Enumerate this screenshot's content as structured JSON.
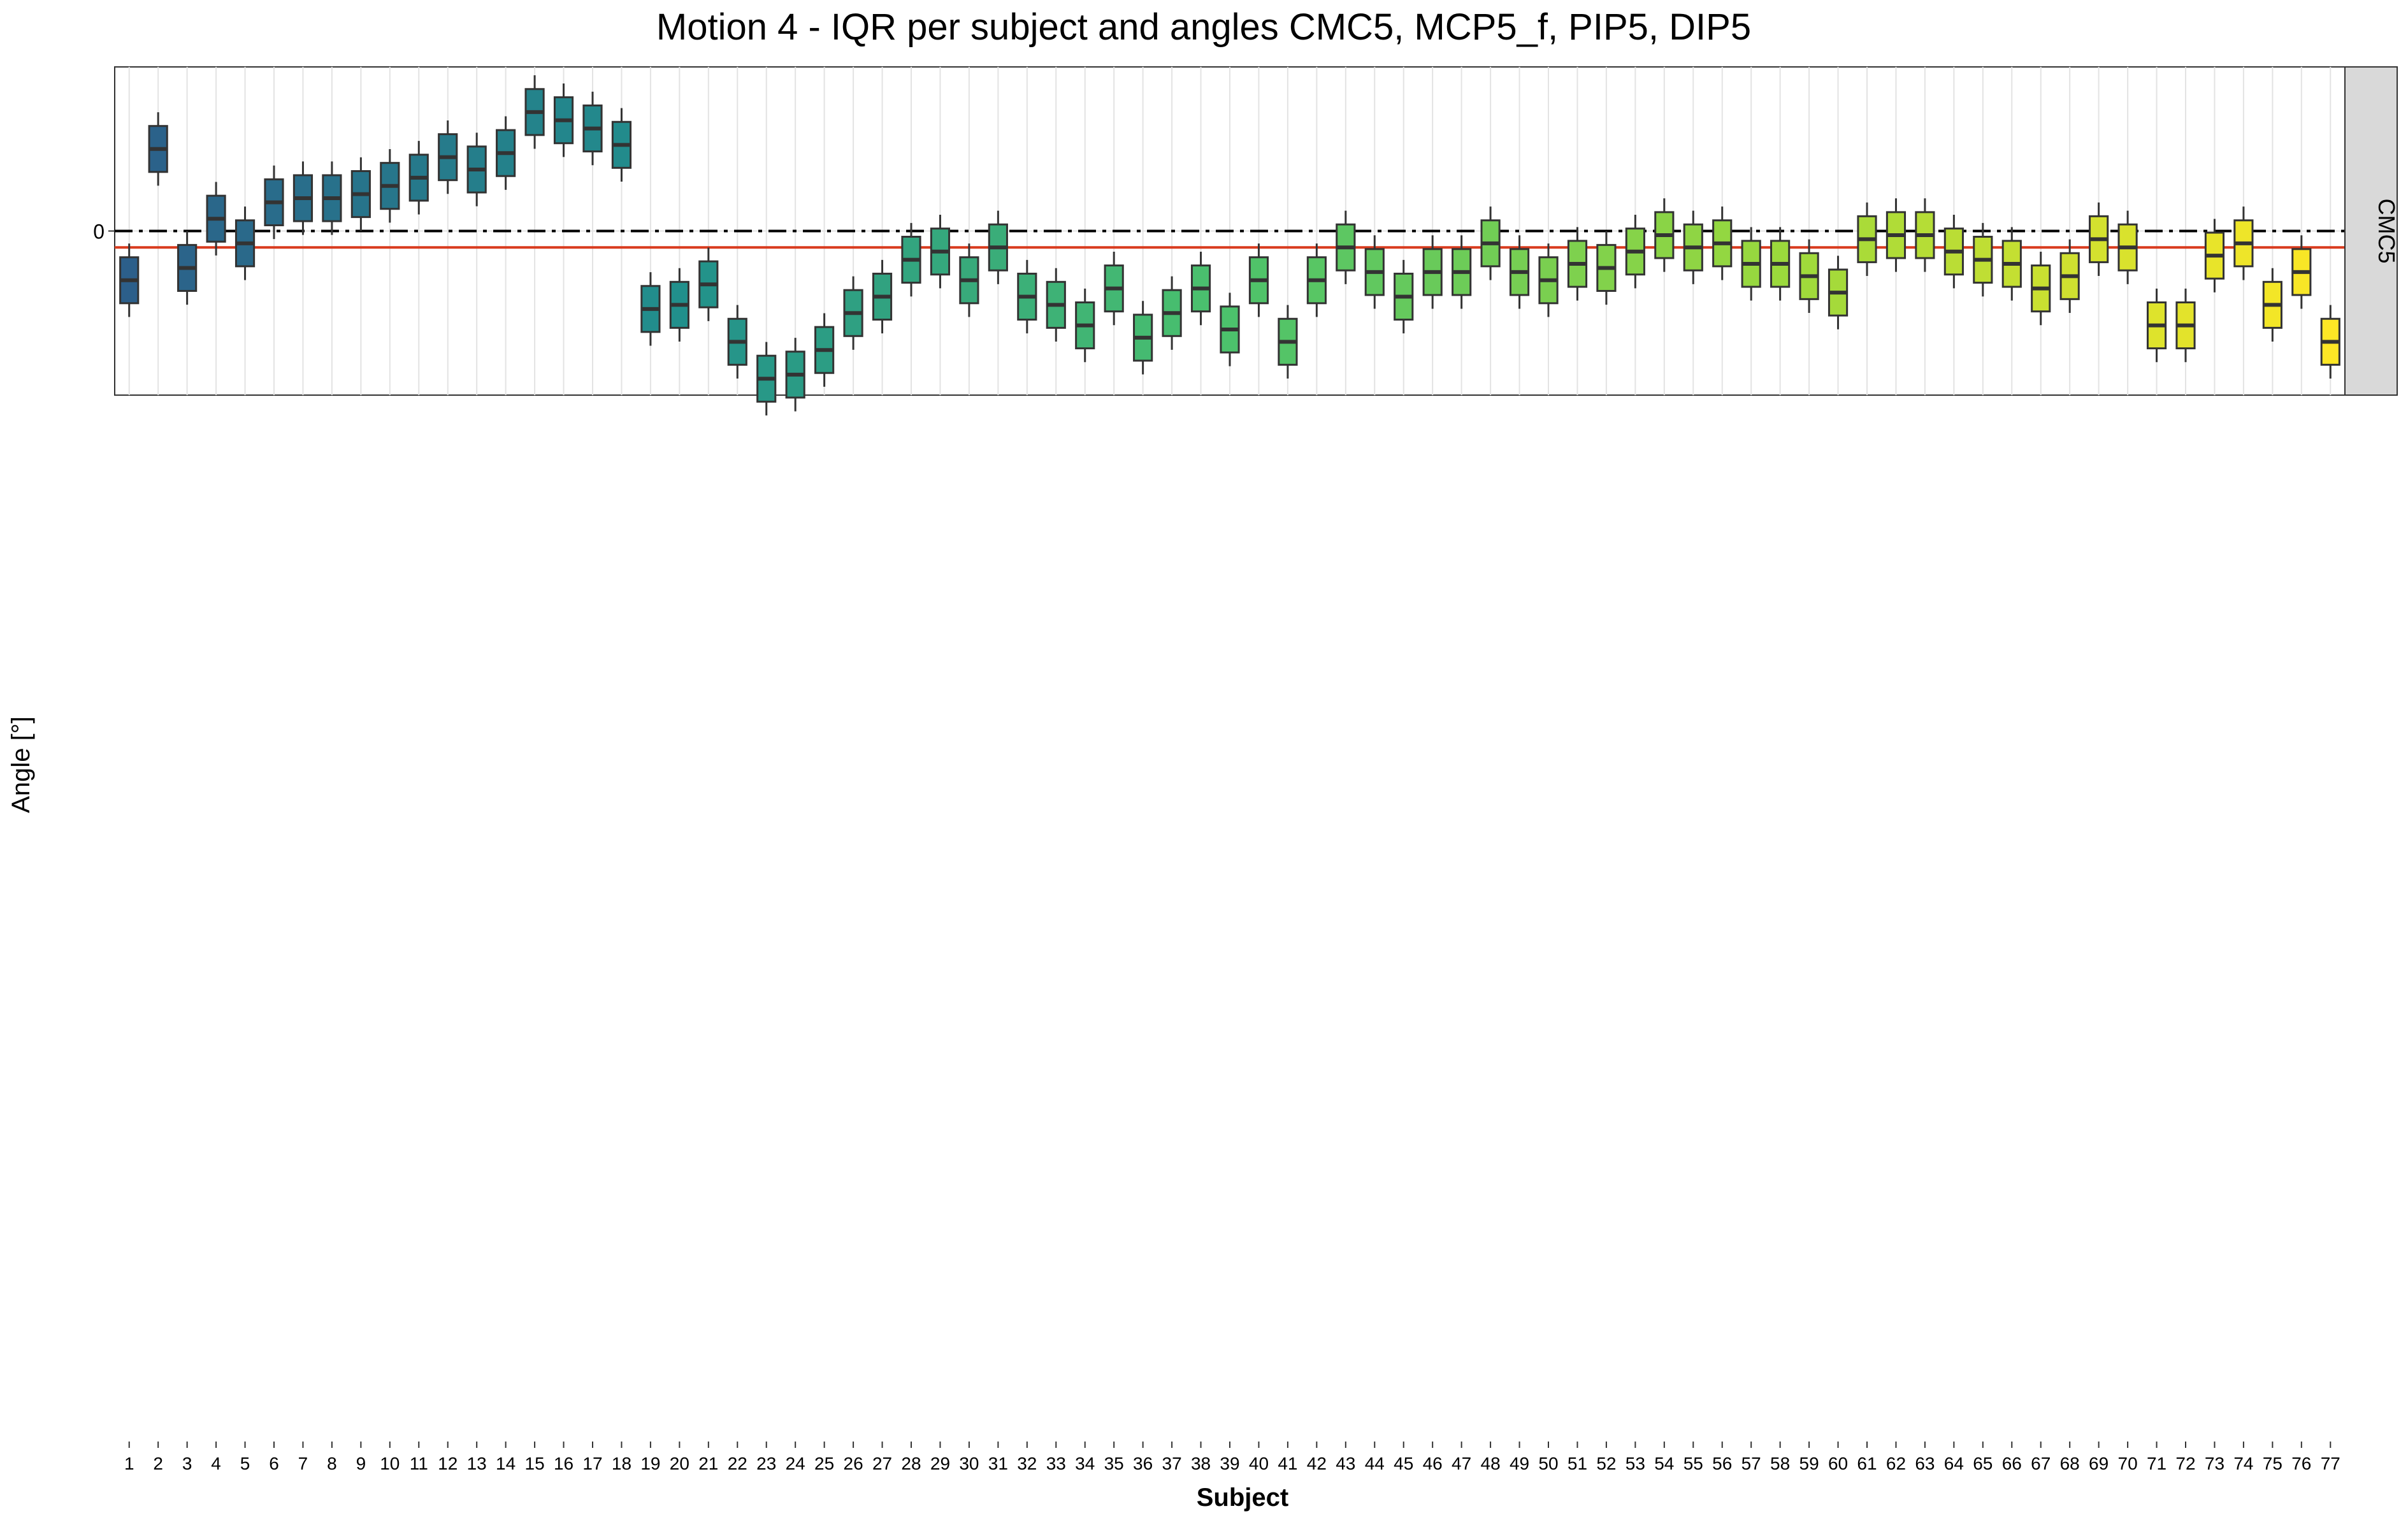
{
  "chart_data": {
    "type": "box",
    "title": "Motion 4 - IQR per subject and angles CMC5, MCP5_f, PIP5, DIP5",
    "xlabel": "Subject",
    "ylabel": "Angle [°]",
    "categories": [
      "1",
      "2",
      "3",
      "4",
      "5",
      "6",
      "7",
      "8",
      "9",
      "10",
      "11",
      "12",
      "13",
      "14",
      "15",
      "16",
      "17",
      "18",
      "19",
      "20",
      "21",
      "22",
      "23",
      "24",
      "25",
      "26",
      "27",
      "28",
      "29",
      "30",
      "31",
      "32",
      "33",
      "34",
      "35",
      "36",
      "37",
      "38",
      "39",
      "40",
      "41",
      "42",
      "43",
      "44",
      "45",
      "46",
      "47",
      "48",
      "49",
      "50",
      "51",
      "52",
      "53",
      "54",
      "55",
      "56",
      "57",
      "58",
      "59",
      "60",
      "61",
      "62",
      "63",
      "64",
      "65",
      "66",
      "67",
      "68",
      "69",
      "70",
      "71",
      "72",
      "73",
      "74",
      "75",
      "76",
      "77"
    ],
    "colors": {
      "start": "#2b5c8a",
      "mid": "#21908c",
      "late": "#5cc863",
      "end": "#fde725",
      "reference_line": "#d93b1e",
      "zero_line": "#000000",
      "strip": "#d9d9d9"
    },
    "ref_line_style": "dash-dot",
    "panels": [
      {
        "name": "CMC5",
        "ylim": [
          -40,
          40
        ],
        "yticks": [
          0
        ],
        "median_line": -4,
        "series": [
          [
            -12,
            20,
            -9,
            3,
            -3,
            7,
            8,
            8,
            9,
            11,
            13,
            18,
            15,
            19,
            29,
            27,
            25,
            21,
            -19,
            -18,
            -13,
            -27,
            -36,
            -35,
            -29,
            -20,
            -16,
            -7,
            -5,
            -12,
            -4,
            -16,
            -18,
            -23,
            -14,
            -26,
            -20,
            -14,
            -24,
            -12,
            -27,
            -12,
            -4,
            -10,
            -16,
            -10,
            -10,
            -3,
            -10,
            -12,
            -8,
            -9,
            -5,
            -1,
            -4,
            -3,
            -8,
            -8,
            -11,
            -15,
            -2,
            -1,
            -1,
            -5,
            -7,
            -8,
            -14,
            -11,
            -2,
            -4,
            -23,
            -23,
            -6,
            -3,
            -18,
            -10,
            -27
          ],
          []
        ]
      }
    ]
  }
}
